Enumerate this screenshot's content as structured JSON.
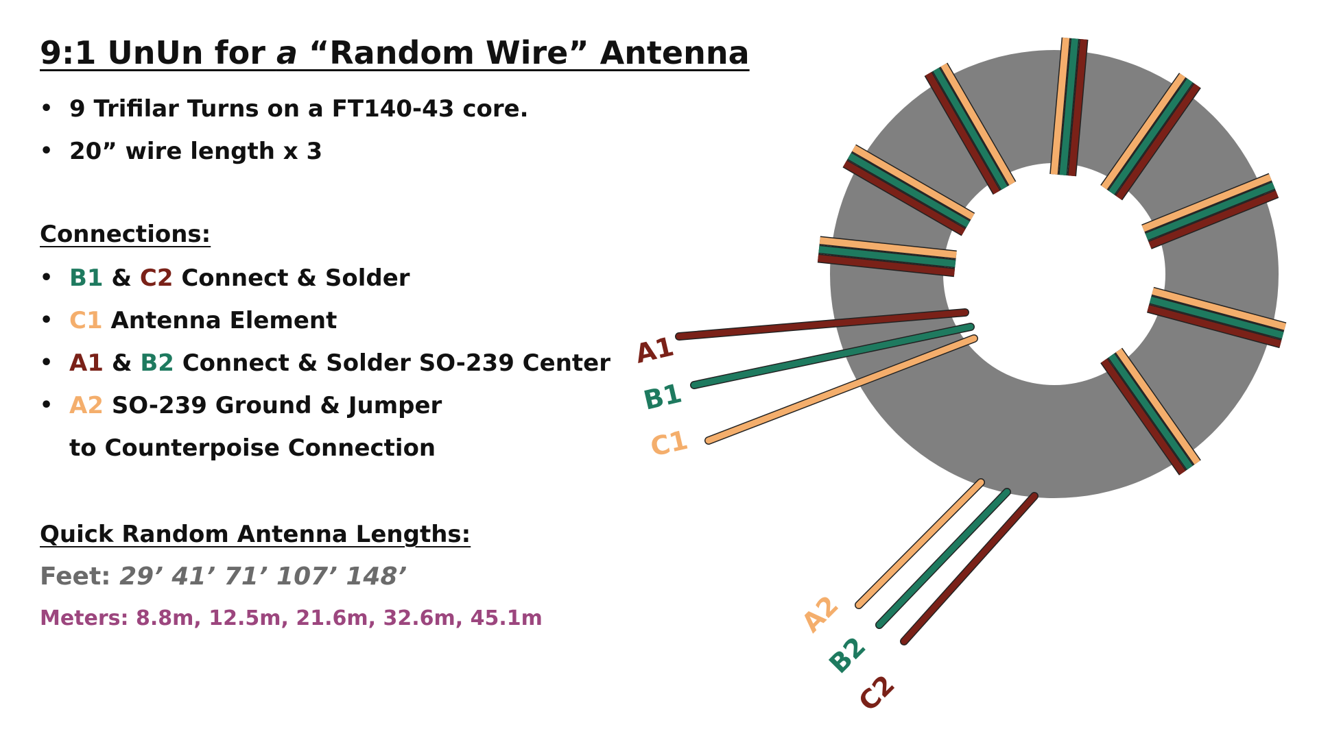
{
  "title": {
    "prefix": "9:1 UnUn for ",
    "italic": "a",
    "suffix": " “Random Wire” Antenna"
  },
  "specs": [
    "9 Trifilar Turns on a FT140-43 core.",
    "20” wire length x 3"
  ],
  "connections": {
    "heading": "Connections:",
    "items": [
      {
        "w1": "B1",
        "sep": " & ",
        "w2": "C2",
        "text": " Connect & Solder"
      },
      {
        "w1": "C1",
        "text": " Antenna Element"
      },
      {
        "w1": "A1",
        "sep": " & ",
        "w2": "B2",
        "text": " Connect & Solder SO-239 Center"
      },
      {
        "w1": "A2",
        "text": " SO-239 Ground & Jumper",
        "cont": "to Counterpoise Connection"
      }
    ]
  },
  "lengths": {
    "heading": "Quick Random Antenna Lengths:",
    "feet_label": "Feet: ",
    "feet": "29’ 41’ 71’ 107’ 148’",
    "meters": "Meters: 8.8m, 12.5m, 21.6m, 32.6m, 45.1m"
  },
  "wire_labels": {
    "a1": "A1",
    "b1": "B1",
    "c1": "C1",
    "a2": "A2",
    "b2": "B2",
    "c2": "C2"
  },
  "colors": {
    "core": "#808080",
    "wire_a": "#7a2118",
    "wire_b": "#1e7a5f",
    "wire_c": "#f4ae6c",
    "feet_text": "#6b6b6b",
    "meters_text": "#9c467e"
  }
}
